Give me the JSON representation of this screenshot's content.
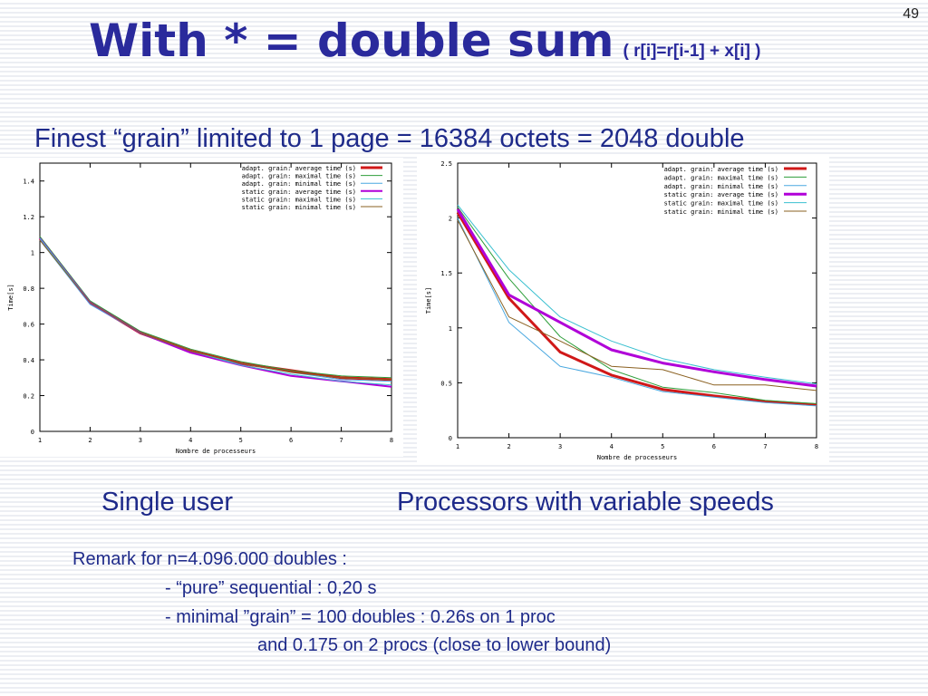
{
  "slide": {
    "page_number": "49",
    "title_main": "With *  = double sum",
    "title_sub": "( r[i]=r[i-1] + x[i] )",
    "subtitle": "Finest “grain” limited to 1 page = 16384 octets = 2048 double",
    "captions": [
      "Single user",
      "Processors with variable speeds"
    ],
    "remarks": [
      "Remark  for n=4.096.000 doubles  :",
      "- “pure” sequential : 0,20 s",
      "- minimal ”grain” = 100 doubles : 0.26s on 1 proc",
      "and 0.175 on 2 procs (close to lower bound)"
    ]
  },
  "chart_data": [
    {
      "type": "line",
      "x": [
        1,
        2,
        3,
        4,
        5,
        6,
        7,
        8
      ],
      "xlabel": "Nombre de processeurs",
      "ylabel": "Time[s]",
      "xlim": [
        1,
        8
      ],
      "ylim": [
        0,
        1.5
      ],
      "xticks": [
        "1",
        "2",
        "3",
        "4",
        "5",
        "6",
        "7",
        "8"
      ],
      "yticks": [
        {
          "v": 0,
          "label": "0"
        },
        {
          "v": 0.2,
          "label": "0.2"
        },
        {
          "v": 0.4,
          "label": "0.4"
        },
        {
          "v": 0.6,
          "label": "0.6"
        },
        {
          "v": 0.8,
          "label": "0.8"
        },
        {
          "v": 1,
          "label": "1"
        },
        {
          "v": 1.2,
          "label": "1.2"
        },
        {
          "v": 1.4,
          "label": "1.4"
        }
      ],
      "grid": false,
      "legend_position": "top-right",
      "series": [
        {
          "name": "adapt. grain: average time (s)",
          "color": "#d01818",
          "width": 3,
          "values": [
            1.08,
            0.72,
            0.55,
            0.45,
            0.38,
            0.34,
            0.3,
            0.29
          ]
        },
        {
          "name": "adapt. grain: maximal time (s)",
          "color": "#2e9e3a",
          "width": 1,
          "values": [
            1.09,
            0.73,
            0.56,
            0.46,
            0.39,
            0.34,
            0.31,
            0.3
          ]
        },
        {
          "name": "adapt. grain: minimal time (s)",
          "color": "#4aa8e0",
          "width": 1,
          "values": [
            1.07,
            0.71,
            0.55,
            0.44,
            0.38,
            0.33,
            0.29,
            0.28
          ]
        },
        {
          "name": "static grain: average time (s)",
          "color": "#b000d8",
          "width": 2,
          "values": [
            1.08,
            0.72,
            0.55,
            0.44,
            0.37,
            0.31,
            0.28,
            0.25
          ]
        },
        {
          "name": "static grain: maximal time (s)",
          "color": "#3ac0d0",
          "width": 1,
          "values": [
            1.08,
            0.72,
            0.55,
            0.45,
            0.37,
            0.32,
            0.28,
            0.26
          ]
        },
        {
          "name": "static grain: minimal time (s)",
          "color": "#8a6020",
          "width": 1,
          "values": [
            1.07,
            0.72,
            0.55,
            0.45,
            0.38,
            0.33,
            0.3,
            0.29
          ]
        }
      ]
    },
    {
      "type": "line",
      "x": [
        1,
        2,
        3,
        4,
        5,
        6,
        7,
        8
      ],
      "xlabel": "Nombre de processeurs",
      "ylabel": "Time[s]",
      "xlim": [
        1,
        8
      ],
      "ylim": [
        0,
        2.5
      ],
      "xticks": [
        "1",
        "2",
        "3",
        "4",
        "5",
        "6",
        "7",
        "8"
      ],
      "yticks": [
        {
          "v": 0,
          "label": "0"
        },
        {
          "v": 0.5,
          "label": "0.5"
        },
        {
          "v": 1,
          "label": "1"
        },
        {
          "v": 1.5,
          "label": "1.5"
        },
        {
          "v": 2,
          "label": "2"
        },
        {
          "v": 2.5,
          "label": "2.5"
        }
      ],
      "grid": false,
      "legend_position": "top-right",
      "series": [
        {
          "name": "adapt. grain: average time (s)",
          "color": "#d01818",
          "width": 3,
          "values": [
            2.05,
            1.27,
            0.78,
            0.57,
            0.44,
            0.38,
            0.33,
            0.3
          ]
        },
        {
          "name": "adapt. grain: maximal time (s)",
          "color": "#2e9e3a",
          "width": 1,
          "values": [
            2.1,
            1.45,
            0.92,
            0.62,
            0.46,
            0.41,
            0.34,
            0.31
          ]
        },
        {
          "name": "adapt. grain: minimal time (s)",
          "color": "#4aa8e0",
          "width": 1,
          "values": [
            2.0,
            1.05,
            0.65,
            0.55,
            0.42,
            0.37,
            0.32,
            0.29
          ]
        },
        {
          "name": "static grain: average time (s)",
          "color": "#b000d8",
          "width": 3,
          "values": [
            2.08,
            1.3,
            1.05,
            0.8,
            0.68,
            0.6,
            0.53,
            0.47
          ]
        },
        {
          "name": "static grain: maximal time (s)",
          "color": "#3ac0d0",
          "width": 1,
          "values": [
            2.12,
            1.53,
            1.1,
            0.88,
            0.72,
            0.62,
            0.55,
            0.49
          ]
        },
        {
          "name": "static grain: minimal time (s)",
          "color": "#8a6020",
          "width": 1,
          "values": [
            1.98,
            1.1,
            0.88,
            0.65,
            0.62,
            0.48,
            0.48,
            0.43
          ]
        }
      ]
    }
  ]
}
